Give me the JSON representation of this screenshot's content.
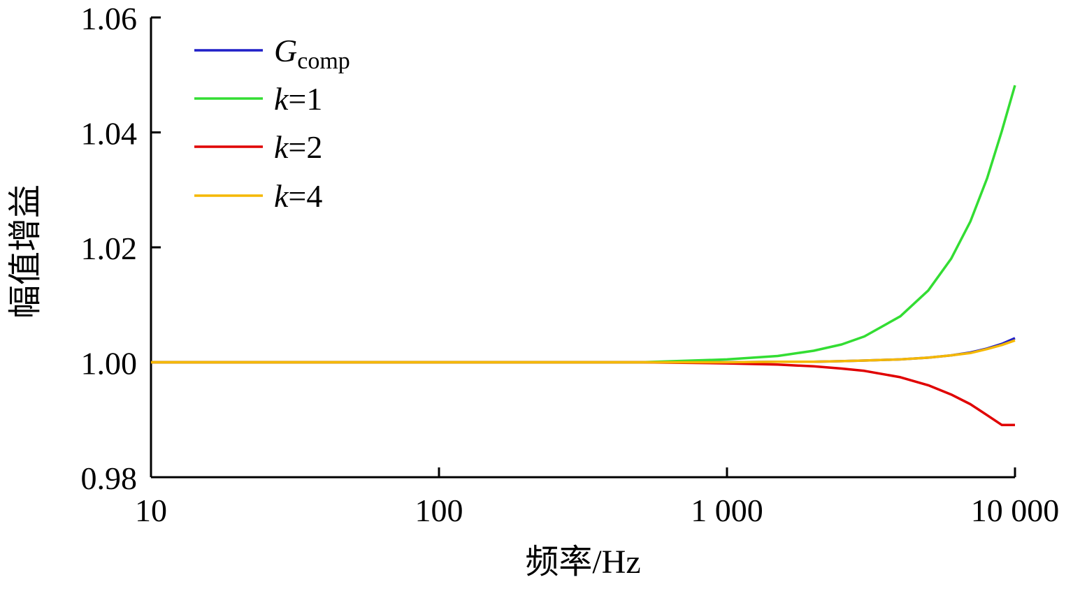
{
  "chart_data": {
    "type": "line",
    "title": "",
    "xlabel": "频率/Hz",
    "ylabel": "幅值增益",
    "xscale": "log",
    "xlim": [
      10,
      10000
    ],
    "ylim": [
      0.98,
      1.06
    ],
    "xticks": [
      10,
      100,
      1000,
      10000
    ],
    "xtick_labels": [
      "10",
      "100",
      "1 000",
      "10 000"
    ],
    "yticks": [
      0.98,
      1.0,
      1.02,
      1.04,
      1.06
    ],
    "ytick_labels": [
      "0.98",
      "1.00",
      "1.02",
      "1.04",
      "1.06"
    ],
    "grid": false,
    "legend_position": "top-left",
    "x": [
      10,
      100,
      500,
      1000,
      1500,
      2000,
      2500,
      3000,
      4000,
      5000,
      6000,
      7000,
      8000,
      9000,
      10000
    ],
    "series": [
      {
        "name": "Gcomp",
        "legend_main": "G",
        "legend_sub": "comp",
        "italic": true,
        "color": "#1f1fc8",
        "values": [
          1.0,
          1.0,
          1.0,
          1.0,
          1.0001,
          1.0001,
          1.0002,
          1.0003,
          1.0005,
          1.0008,
          1.0012,
          1.0017,
          1.0024,
          1.0032,
          1.0042
        ]
      },
      {
        "name": "k=1",
        "legend_main": "k",
        "legend_rest": "=1",
        "italic": true,
        "color": "#33dd33",
        "values": [
          1.0,
          1.0,
          1.0,
          1.0005,
          1.0011,
          1.002,
          1.0031,
          1.0045,
          1.008,
          1.0125,
          1.018,
          1.0245,
          1.032,
          1.0402,
          1.0482
        ]
      },
      {
        "name": "k=2",
        "legend_main": "k",
        "legend_rest": "=2",
        "italic": true,
        "color": "#e00000",
        "values": [
          1.0,
          1.0,
          1.0,
          0.9998,
          0.9996,
          0.9993,
          0.9989,
          0.9985,
          0.9974,
          0.996,
          0.9944,
          0.9927,
          0.9908,
          0.9891,
          0.9891
        ]
      },
      {
        "name": "k=4",
        "legend_main": "k",
        "legend_rest": "=4",
        "italic": true,
        "color": "#f5b800",
        "values": [
          1.0,
          1.0,
          1.0,
          1.0,
          1.0001,
          1.0001,
          1.0002,
          1.0003,
          1.0005,
          1.0008,
          1.0012,
          1.0016,
          1.0023,
          1.003,
          1.0038
        ]
      }
    ]
  }
}
